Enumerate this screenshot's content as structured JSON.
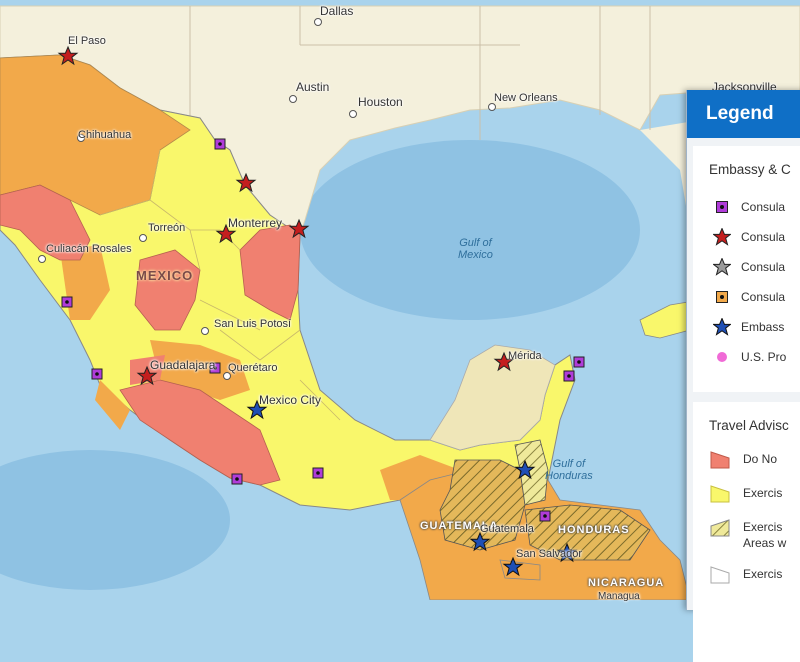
{
  "colors": {
    "water": "#a9d3ec",
    "deep_water": "#8fc2e3",
    "land": "#f4f0dc",
    "do_not_travel": "#f08070",
    "reconsider": "#f2a94a",
    "exercise_increased": "#f9f76b",
    "exercise_normal": "#ffffff",
    "consulate": "#b03cd9",
    "embassy_star": "#1f4fb5",
    "consulate_star_red": "#c41e1e",
    "us_presence": "#f06ad6",
    "legend_header": "#0f6fc6"
  },
  "map": {
    "cities": [
      {
        "name": "Dallas"
      },
      {
        "name": "El Paso"
      },
      {
        "name": "Austin"
      },
      {
        "name": "Houston"
      },
      {
        "name": "New Orleans"
      },
      {
        "name": "Jacksonville"
      },
      {
        "name": "Chihuahua"
      },
      {
        "name": "Torreón"
      },
      {
        "name": "Monterrey"
      },
      {
        "name": "Culiacán Rosales"
      },
      {
        "name": "San Luis Potosí"
      },
      {
        "name": "Guadalajara"
      },
      {
        "name": "Querétaro"
      },
      {
        "name": "Mexico City"
      },
      {
        "name": "Mérida"
      }
    ],
    "country_labels": {
      "mexico": "MEXICO",
      "guatemala": "GUATEMALA",
      "honduras": "HONDURAS",
      "nicaragua": "NICARAGUA"
    },
    "city_labels": {
      "el_salvador": "San Salvador",
      "guatemala_city": "Guatemala",
      "managua": "Managua"
    },
    "sea_labels": {
      "gulf_mexico": "Gulf of\nMexico",
      "gulf_honduras": "Gulf of\nHonduras"
    }
  },
  "legend": {
    "title": "Legend",
    "section_facilities": "Embassy & C",
    "facility_items": [
      {
        "label": "Consula",
        "icon": "consulate-square-icon"
      },
      {
        "label": "Consula",
        "icon": "red-star-icon"
      },
      {
        "label": "Consula",
        "icon": "gray-star-icon"
      },
      {
        "label": "Consula",
        "icon": "orange-square-icon"
      },
      {
        "label": "Embass",
        "icon": "blue-star-icon"
      },
      {
        "label": "U.S. Pro",
        "icon": "pink-dot-icon"
      }
    ],
    "section_advisory": "Travel Advisc",
    "advisory_items": [
      {
        "label": "Do No"
      },
      {
        "label": "Exercis"
      },
      {
        "label": "Exercis\nAreas w"
      },
      {
        "label": "Exercis"
      }
    ]
  }
}
